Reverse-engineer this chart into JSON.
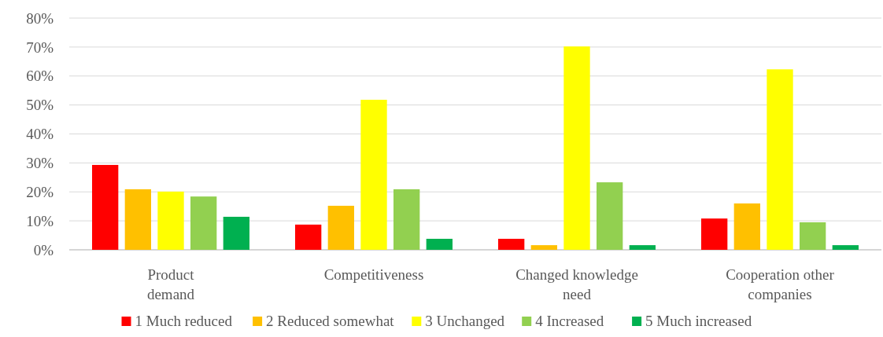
{
  "chart_data": {
    "type": "bar",
    "categories": [
      "Product demand",
      "Competitiveness",
      "Changed knowledge need",
      "Cooperation other companies"
    ],
    "series": [
      {
        "name": "1 Much reduced",
        "color": "#ff0000",
        "values": [
          29.3,
          8.7,
          3.8,
          10.8
        ]
      },
      {
        "name": "2 Reduced somewhat",
        "color": "#ffc000",
        "values": [
          20.9,
          15.2,
          1.6,
          16.0
        ]
      },
      {
        "name": "3 Unchanged",
        "color": "#ffff00",
        "values": [
          20.1,
          51.8,
          70.2,
          62.3
        ]
      },
      {
        "name": "4 Increased",
        "color": "#92d050",
        "values": [
          18.4,
          20.9,
          23.3,
          9.5
        ]
      },
      {
        "name": "5 Much increased",
        "color": "#00b050",
        "values": [
          11.4,
          3.8,
          1.6,
          1.6
        ]
      }
    ],
    "ylim": [
      0,
      80
    ],
    "yticks": [
      {
        "value": 0,
        "label": "0%"
      },
      {
        "value": 10,
        "label": "10%"
      },
      {
        "value": 20,
        "label": "20%"
      },
      {
        "value": 30,
        "label": "30%"
      },
      {
        "value": 40,
        "label": "40%"
      },
      {
        "value": 50,
        "label": "50%"
      },
      {
        "value": 60,
        "label": "60%"
      },
      {
        "value": 70,
        "label": "70%"
      },
      {
        "value": 80,
        "label": "80%"
      }
    ],
    "grid": "y",
    "legend": "bottom"
  }
}
